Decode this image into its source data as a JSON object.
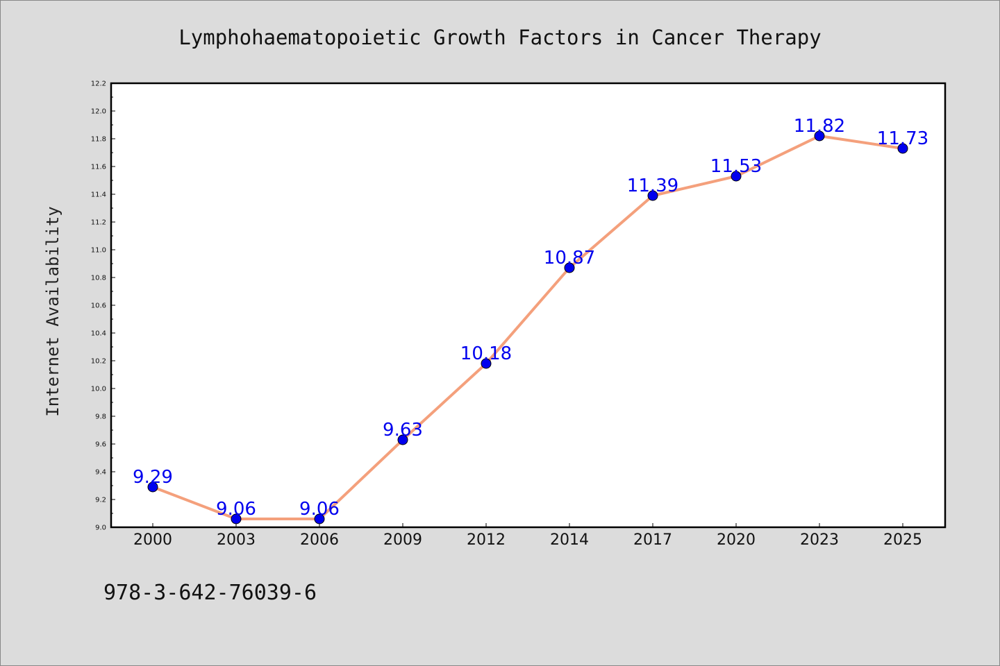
{
  "chart_data": {
    "type": "line",
    "title": "Lymphohaematopoietic Growth Factors in Cancer Therapy",
    "xlabel": "",
    "ylabel": "Internet Availability",
    "categories": [
      "2000",
      "2003",
      "2006",
      "2009",
      "2012",
      "2014",
      "2017",
      "2020",
      "2023",
      "2025"
    ],
    "series": [
      {
        "values": [
          9.29,
          9.06,
          9.06,
          9.63,
          10.18,
          10.87,
          11.39,
          11.53,
          11.82,
          11.73
        ],
        "line_color": "#f4a07c",
        "marker_color": "#0000ee"
      }
    ],
    "data_labels": [
      "9.29",
      "9.06",
      "9.06",
      "9.63",
      "10.18",
      "10.87",
      "11.39",
      "11.53",
      "11.82",
      "11.73"
    ],
    "ylim": [
      9.0,
      12.2
    ],
    "y_major_ticks": [
      "9.0",
      "9.2",
      "9.4",
      "9.6",
      "9.8",
      "10.0",
      "10.2",
      "10.4",
      "10.6",
      "10.8",
      "11.0",
      "11.2",
      "11.4",
      "11.6",
      "11.8",
      "12.0",
      "12.2"
    ],
    "grid": false,
    "legend": "none",
    "label_color": "#0000ee",
    "annotation": "978-3-642-76039-6"
  }
}
